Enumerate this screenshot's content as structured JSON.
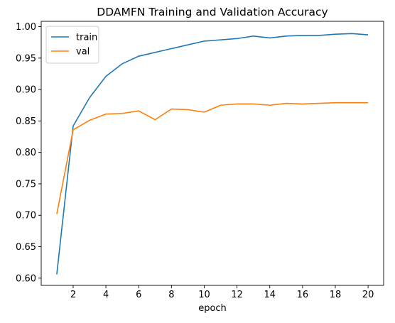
{
  "chart_data": {
    "type": "line",
    "title": "DDAMFN Training and Validation Accuracy",
    "xlabel": "epoch",
    "ylabel": "",
    "xlim": [
      0.05,
      20.95
    ],
    "ylim": [
      0.5885,
      1.0085
    ],
    "x": [
      1,
      2,
      3,
      4,
      5,
      6,
      7,
      8,
      9,
      10,
      11,
      12,
      13,
      14,
      15,
      16,
      17,
      18,
      19,
      20
    ],
    "xticks": [
      2,
      4,
      6,
      8,
      10,
      12,
      14,
      16,
      18,
      20
    ],
    "xtick_labels": [
      "2",
      "4",
      "6",
      "8",
      "10",
      "12",
      "14",
      "16",
      "18",
      "20"
    ],
    "yticks": [
      0.6,
      0.65,
      0.7,
      0.75,
      0.8,
      0.85,
      0.9,
      0.95,
      1.0
    ],
    "ytick_labels": [
      "0.60",
      "0.65",
      "0.70",
      "0.75",
      "0.80",
      "0.85",
      "0.90",
      "0.95",
      "1.00"
    ],
    "grid": false,
    "legend": "top-left",
    "series": [
      {
        "name": "train",
        "color": "#1f77b4",
        "values": [
          0.606,
          0.842,
          0.887,
          0.921,
          0.941,
          0.953,
          0.959,
          0.965,
          0.971,
          0.977,
          0.979,
          0.981,
          0.985,
          0.982,
          0.985,
          0.986,
          0.986,
          0.988,
          0.989,
          0.987
        ]
      },
      {
        "name": "val",
        "color": "#ff7f0e",
        "values": [
          0.702,
          0.836,
          0.851,
          0.861,
          0.862,
          0.866,
          0.852,
          0.869,
          0.868,
          0.864,
          0.875,
          0.877,
          0.877,
          0.875,
          0.878,
          0.877,
          0.878,
          0.879,
          0.879,
          0.879
        ]
      }
    ]
  }
}
